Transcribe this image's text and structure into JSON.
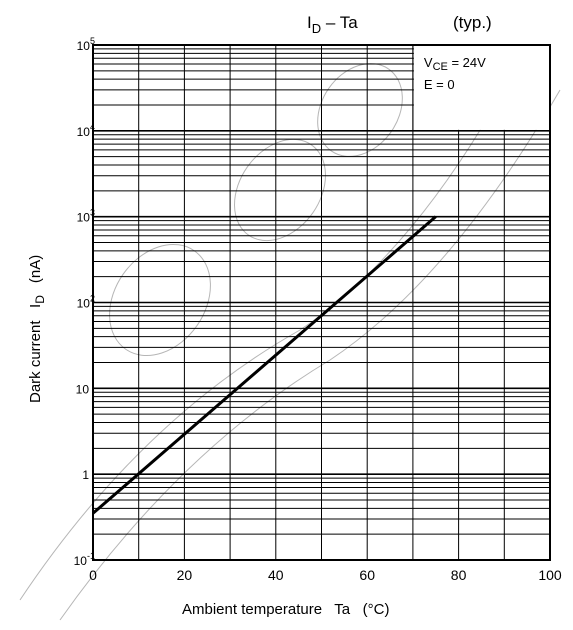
{
  "chart_data": {
    "type": "line",
    "title": "I",
    "title_sub": "D",
    "title_rest": " – Ta",
    "subtitle": "(typ.)",
    "xlabel": "Ambient temperature   Ta   (°C)",
    "ylabel_main": "Dark current   I",
    "ylabel_sub": "D",
    "ylabel_unit": "(nA)",
    "xlim": [
      0,
      100
    ],
    "ylim": [
      0.1,
      100000
    ],
    "yscale": "log",
    "grid": true,
    "x_ticks": [
      {
        "value": 0,
        "label": "0"
      },
      {
        "value": 20,
        "label": "20"
      },
      {
        "value": 40,
        "label": "40"
      },
      {
        "value": 60,
        "label": "60"
      },
      {
        "value": 80,
        "label": "80"
      },
      {
        "value": 100,
        "label": "100"
      }
    ],
    "y_ticks": [
      {
        "value": 0.1,
        "base": "10",
        "exp": "-1"
      },
      {
        "value": 1,
        "base": "1",
        "exp": ""
      },
      {
        "value": 10,
        "base": "10",
        "exp": ""
      },
      {
        "value": 100,
        "base": "10",
        "exp": "2"
      },
      {
        "value": 1000,
        "base": "10",
        "exp": "3"
      },
      {
        "value": 10000,
        "base": "10",
        "exp": "4"
      },
      {
        "value": 100000,
        "base": "10",
        "exp": "5"
      }
    ],
    "annotations": [
      {
        "text": "V",
        "sub": "CE",
        "rest": " = 24V"
      },
      {
        "text": "E = 0",
        "sub": "",
        "rest": ""
      }
    ],
    "series": [
      {
        "values": [
          [
            0,
            0.35
          ],
          [
            75,
            1000
          ]
        ]
      }
    ]
  }
}
